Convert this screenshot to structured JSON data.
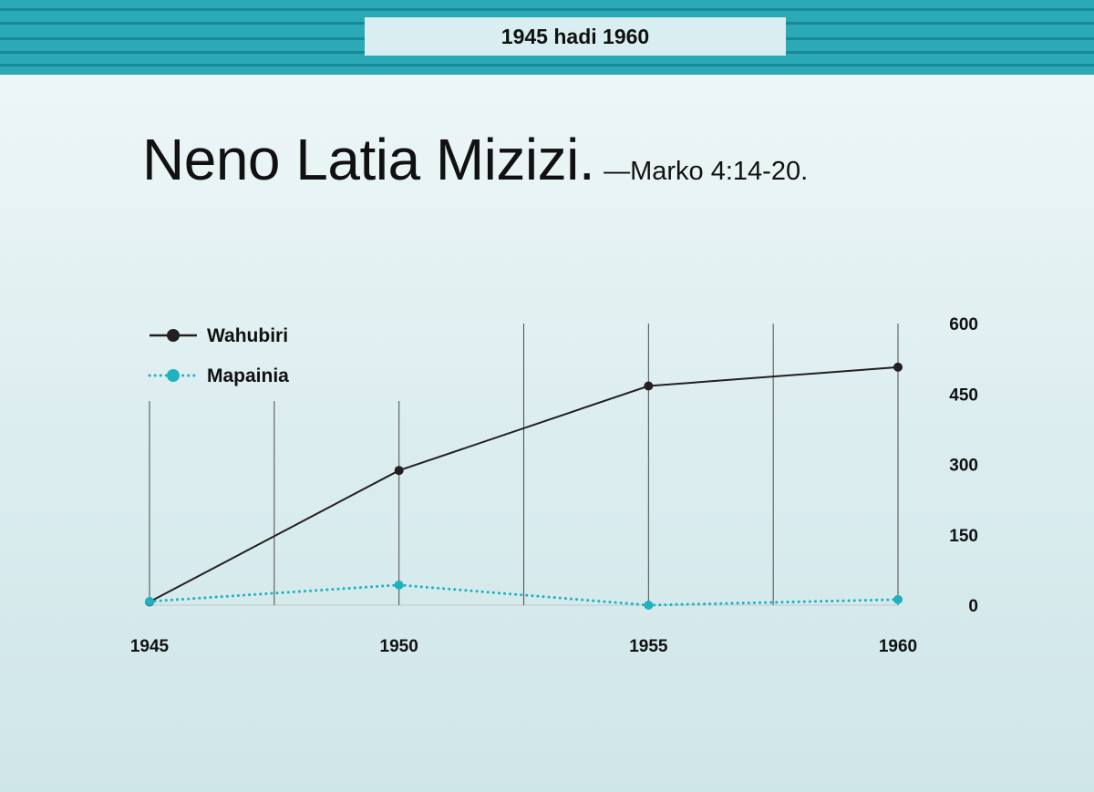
{
  "banner": {
    "label": "1945 hadi 1960"
  },
  "title": {
    "main": "Neno Latia Mizizi.",
    "reference": "—Marko  4:14-20."
  },
  "colors": {
    "banner": "#2ba9b6",
    "wahubiri": "#231f20",
    "mapainia": "#1fb2be"
  },
  "chart_data": {
    "type": "line",
    "x": [
      1945,
      1950,
      1955,
      1960
    ],
    "x_tick_labels": [
      "1945",
      "1950",
      "1955",
      "1960"
    ],
    "y_tick_labels": [
      "0",
      "150",
      "300",
      "450",
      "600"
    ],
    "ylim": [
      0,
      600
    ],
    "y_axis_side": "right",
    "legend_position": "top-left",
    "grid": "vertical",
    "series": [
      {
        "name": "Wahubiri",
        "values": [
          7,
          287,
          467,
          507
        ],
        "style": "solid",
        "color": "#231f20"
      },
      {
        "name": "Mapainia",
        "values": [
          8,
          43,
          0,
          12
        ],
        "style": "dotted",
        "color": "#1fb2be"
      }
    ]
  }
}
